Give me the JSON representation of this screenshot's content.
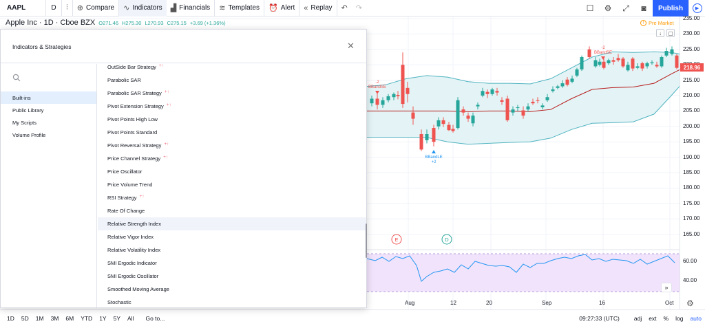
{
  "toolbar": {
    "symbol": "AAPL",
    "interval": "D",
    "compare": "Compare",
    "indicators": "Indicators",
    "financials": "Financials",
    "templates": "Templates",
    "alert": "Alert",
    "replay": "Replay",
    "publish": "Publish"
  },
  "legend": {
    "title": "Apple Inc · 1D · Cboe BZX",
    "open": "O271.46",
    "high": "H275.30",
    "low": "L270.93",
    "close": "C275.15",
    "change": "+3.69 (+1.36%)"
  },
  "premarket": "Pre Market",
  "price_axis": {
    "ticks": [
      "235.00",
      "230.00",
      "225.00",
      "220.00",
      "215.00",
      "210.00",
      "205.00",
      "200.00",
      "195.00",
      "190.00",
      "185.00",
      "180.00",
      "175.00",
      "170.00",
      "165.00"
    ],
    "last_price": "218.96",
    "last_price_color": "#ef5350",
    "rsi_ticks": [
      "60.00",
      "40.00"
    ]
  },
  "time_axis": [
    "Aug",
    "12",
    "20",
    "Sep",
    "16",
    "Oct"
  ],
  "events": [
    "E",
    "D"
  ],
  "signals": {
    "short_1": "BBandSE",
    "short_1_qty": "-2",
    "short_2": "BBandSE",
    "short_2_qty": "-2",
    "long": "BBandLE",
    "long_qty": "+2"
  },
  "bottombar": {
    "ranges": [
      "1D",
      "5D",
      "1M",
      "3M",
      "6M",
      "YTD",
      "1Y",
      "5Y",
      "All"
    ],
    "goto": "Go to...",
    "time": "09:27:33 (UTC)",
    "adj": "adj",
    "ext": "ext",
    "pct": "%",
    "log": "log",
    "auto": "auto"
  },
  "dialog": {
    "title": "Indicators & Strategies",
    "sidebar": [
      {
        "label": "Built-ins",
        "active": true
      },
      {
        "label": "Public Library",
        "active": false
      },
      {
        "label": "My Scripts",
        "active": false
      },
      {
        "label": "Volume Profile",
        "active": false
      }
    ],
    "items": [
      {
        "label": "OutSide Bar Strategy",
        "strategy": true
      },
      {
        "label": "Parabolic SAR",
        "strategy": false
      },
      {
        "label": "Parabolic SAR Strategy",
        "strategy": true
      },
      {
        "label": "Pivot Extension Strategy",
        "strategy": true
      },
      {
        "label": "Pivot Points High Low",
        "strategy": false
      },
      {
        "label": "Pivot Points Standard",
        "strategy": false
      },
      {
        "label": "Pivot Reversal Strategy",
        "strategy": true
      },
      {
        "label": "Price Channel Strategy",
        "strategy": true
      },
      {
        "label": "Price Oscillator",
        "strategy": false
      },
      {
        "label": "Price Volume Trend",
        "strategy": false
      },
      {
        "label": "RSI Strategy",
        "strategy": true
      },
      {
        "label": "Rate Of Change",
        "strategy": false
      },
      {
        "label": "Relative Strength Index",
        "strategy": false,
        "highlighted": true
      },
      {
        "label": "Relative Vigor Index",
        "strategy": false
      },
      {
        "label": "Relative Volatility Index",
        "strategy": false
      },
      {
        "label": "SMI Ergodic Indicator",
        "strategy": false
      },
      {
        "label": "SMI Ergodic Oscillator",
        "strategy": false
      },
      {
        "label": "Smoothed Moving Average",
        "strategy": false
      },
      {
        "label": "Stochastic",
        "strategy": false
      }
    ],
    "strategy_mark": "+↑"
  },
  "colors": {
    "accent": "#2962ff",
    "up": "#26a69a",
    "down": "#ef5350",
    "band_fill": "#e4f4f6",
    "rsi_fill": "#f1e3fb",
    "basis": "#b71c1c"
  }
}
